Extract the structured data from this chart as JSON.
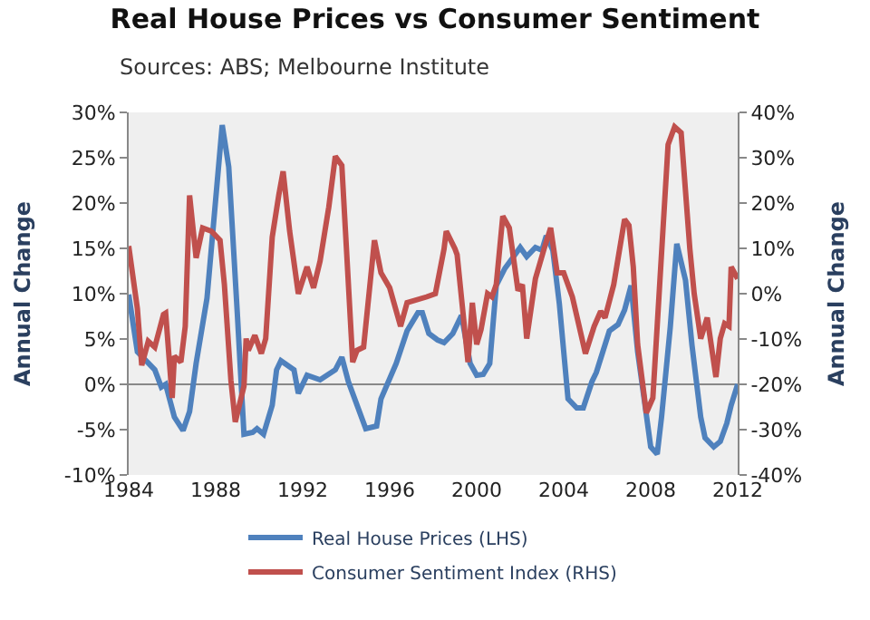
{
  "chart_data": {
    "type": "line",
    "title": "Real House Prices vs Consumer Sentiment",
    "subtitle": "Sources: ABS; Melbourne Institute",
    "ylabel": "Annual Change",
    "y2label": "Annual Change",
    "xlim": [
      1984,
      2012
    ],
    "xticks": [
      1984,
      1988,
      1992,
      1996,
      2000,
      2004,
      2008,
      2012
    ],
    "ylim": [
      -10,
      30
    ],
    "yticks": [
      {
        "value": -10,
        "label": "-10%"
      },
      {
        "value": -5,
        "label": "-5%"
      },
      {
        "value": 0,
        "label": "0%"
      },
      {
        "value": 5,
        "label": "5%"
      },
      {
        "value": 10,
        "label": "10%"
      },
      {
        "value": 15,
        "label": "15%"
      },
      {
        "value": 20,
        "label": "20%"
      },
      {
        "value": 25,
        "label": "25%"
      },
      {
        "value": 30,
        "label": "30%"
      }
    ],
    "y2lim": [
      -40,
      40
    ],
    "y2ticks": [
      {
        "value": -40,
        "label": "-40%"
      },
      {
        "value": -30,
        "label": "-30%"
      },
      {
        "value": -20,
        "label": "-20%"
      },
      {
        "value": -10,
        "label": "-10%"
      },
      {
        "value": 0,
        "label": "0%"
      },
      {
        "value": 10,
        "label": "10%"
      },
      {
        "value": 20,
        "label": "20%"
      },
      {
        "value": 30,
        "label": "30%"
      },
      {
        "value": 40,
        "label": "40%"
      }
    ],
    "grid": false,
    "ref_lines": [
      {
        "axis": "y",
        "value": 0,
        "color": "#888888"
      }
    ],
    "legend": "bottom",
    "marker": "none",
    "line_style": "solid",
    "series": [
      {
        "name": "Real House Prices (LHS)",
        "color": "#4f81bd",
        "x": [
          1984.0,
          1984.4,
          1985.2,
          1985.5,
          1985.7,
          1986.1,
          1986.5,
          1986.8,
          1987.1,
          1987.6,
          1988.3,
          1988.6,
          1989.0,
          1989.3,
          1989.7,
          1989.9,
          1990.2,
          1990.6,
          1990.8,
          1991.0,
          1991.6,
          1991.8,
          1992.2,
          1992.8,
          1993.5,
          1993.8,
          1994.1,
          1994.9,
          1995.4,
          1995.6,
          1996.3,
          1996.8,
          1997.3,
          1997.5,
          1997.8,
          1998.2,
          1998.5,
          1998.9,
          1999.3,
          1999.7,
          2000.0,
          2000.3,
          2000.6,
          2000.9,
          2001.3,
          2001.7,
          2002.0,
          2002.3,
          2002.7,
          2003.0,
          2003.2,
          2003.5,
          2003.8,
          2004.2,
          2004.6,
          2004.9,
          2005.3,
          2005.5,
          2005.8,
          2006.1,
          2006.5,
          2006.8,
          2007.1,
          2007.4,
          2007.7,
          2008.0,
          2008.3,
          2008.5,
          2008.9,
          2009.2,
          2009.6,
          2009.9,
          2010.3,
          2010.5,
          2010.9,
          2011.2,
          2011.5,
          2011.7,
          2012.0
        ],
        "values": [
          9.9,
          3.6,
          1.6,
          -0.3,
          0,
          -3.6,
          -5.1,
          -3,
          2.3,
          9.5,
          28.6,
          24,
          7.6,
          -5.5,
          -5.3,
          -4.9,
          -5.5,
          -2.3,
          1.6,
          2.6,
          1.6,
          -1,
          1,
          0.5,
          1.6,
          3,
          0.3,
          -4.9,
          -4.6,
          -1.6,
          2.3,
          5.9,
          7.9,
          7.9,
          5.6,
          4.9,
          4.6,
          5.6,
          7.6,
          2.3,
          1,
          1.1,
          2.3,
          10.9,
          12.8,
          14.1,
          15.1,
          14.1,
          15.1,
          14.8,
          16.4,
          14.8,
          8.9,
          -1.6,
          -2.6,
          -2.6,
          0.3,
          1.3,
          3.6,
          5.9,
          6.6,
          8.2,
          10.9,
          3.6,
          -1.6,
          -6.9,
          -7.7,
          -3.6,
          6.3,
          15.5,
          11.5,
          4.3,
          -3.6,
          -5.9,
          -6.9,
          -6.3,
          -4.3,
          -2.3,
          0
        ]
      },
      {
        "name": "Consumer Sentiment Index (RHS)",
        "color": "#c0504d",
        "axis": "y2",
        "x": [
          1984.0,
          1984.4,
          1984.6,
          1984.9,
          1985.2,
          1985.6,
          1985.7,
          1986.0,
          1986.1,
          1986.4,
          1986.6,
          1986.8,
          1987.1,
          1987.4,
          1987.8,
          1988.2,
          1988.4,
          1988.7,
          1988.9,
          1989.3,
          1989.4,
          1989.5,
          1989.8,
          1990.1,
          1990.3,
          1990.6,
          1990.9,
          1991.1,
          1991.4,
          1991.8,
          1992.2,
          1992.5,
          1992.8,
          1993.2,
          1993.5,
          1993.8,
          1994.3,
          1994.5,
          1994.8,
          1995.3,
          1995.6,
          1996.0,
          1996.5,
          1996.8,
          1997.7,
          1998.1,
          1998.5,
          1998.6,
          1999.0,
          1999.1,
          1999.6,
          1999.8,
          2000.0,
          2000.2,
          2000.5,
          2000.7,
          2000.9,
          2001.2,
          2001.5,
          2001.9,
          2002.1,
          2002.3,
          2002.7,
          2003.1,
          2003.4,
          2003.7,
          2004.0,
          2004.4,
          2005.0,
          2005.4,
          2005.7,
          2005.9,
          2006.3,
          2006.8,
          2007.0,
          2007.2,
          2007.4,
          2007.8,
          2008.1,
          2008.8,
          2009.1,
          2009.4,
          2009.8,
          2010.0,
          2010.3,
          2010.6,
          2011.0,
          2011.2,
          2011.4,
          2011.6,
          2011.7,
          2012.0
        ],
        "values": [
          10.5,
          -3.3,
          -15.8,
          -10.5,
          -11.8,
          -4.6,
          -4.3,
          -23,
          -13.8,
          -15.1,
          -7.2,
          21.7,
          7.9,
          14.5,
          13.8,
          11.8,
          2,
          -19.1,
          -28.3,
          -20.4,
          -9.9,
          -12.5,
          -9.2,
          -13.2,
          -9.9,
          12.5,
          21.7,
          27,
          13.8,
          0,
          5.9,
          1.3,
          7.2,
          19.1,
          30.3,
          28.3,
          -15.1,
          -12.5,
          -11.8,
          11.8,
          4.6,
          1.3,
          -7.2,
          -2,
          -0.7,
          0,
          9.9,
          13.8,
          9.9,
          8.6,
          -15.1,
          -2,
          -11.2,
          -7.9,
          0,
          -0.7,
          2,
          17.1,
          14.5,
          0.7,
          2,
          -9.9,
          3.3,
          9.9,
          14.5,
          4.6,
          4.6,
          -0.7,
          -13.2,
          -7.2,
          -3.9,
          -5.3,
          2,
          16.4,
          15.1,
          5.9,
          -11.2,
          -26.3,
          -23,
          32.9,
          36.8,
          35.5,
          9.9,
          0,
          -9.9,
          -5.3,
          -18.4,
          -9.9,
          -6.6,
          -7.2,
          5.9,
          3.3
        ]
      }
    ]
  }
}
